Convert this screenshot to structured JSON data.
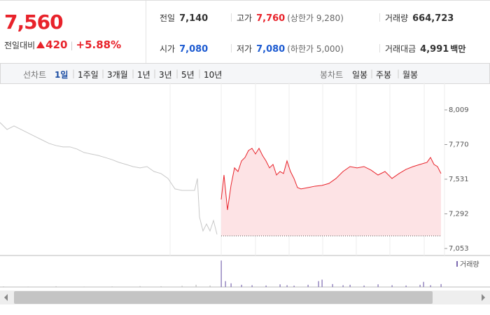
{
  "quote": {
    "price": "7,560",
    "change_label": "전일대비",
    "change": "420",
    "change_pct": "+5.88%"
  },
  "stats": [
    {
      "label": "전일",
      "value": "7,140"
    },
    {
      "label": "고가",
      "value": "7,760",
      "note": "(상한가 9,280)"
    },
    {
      "label": "거래량",
      "value": "664,723"
    },
    {
      "label": "시가",
      "value": "7,080"
    },
    {
      "label": "저가",
      "value": "7,080",
      "note": "(하한가 5,000)"
    },
    {
      "label": "거래대금",
      "value": "4,991",
      "unit": "백만"
    }
  ],
  "tabs": {
    "line_label": "선차트",
    "line_periods": [
      "1일",
      "1주일",
      "3개월",
      "1년",
      "3년",
      "5년",
      "10년"
    ],
    "candle_label": "봉차트",
    "candle_periods": [
      "일봉",
      "주봉",
      "월봉"
    ]
  },
  "chart_data": {
    "type": "line",
    "xlim": [
      0,
      635
    ],
    "ylim": [
      7053,
      8009
    ],
    "yticks": [
      {
        "value": 7053,
        "label": "7,053"
      },
      {
        "value": 7292,
        "label": "7,292"
      },
      {
        "value": 7531,
        "label": "7,531"
      },
      {
        "value": 7770,
        "label": "7,770"
      },
      {
        "value": 8009,
        "label": "8,009"
      }
    ],
    "baseline": 7140,
    "series": [
      {
        "color": "#c8c8c8",
        "x": [
          0,
          10,
          20,
          30,
          40,
          50,
          60,
          70,
          80,
          90,
          100,
          110,
          120,
          130,
          140,
          150,
          160,
          170,
          180,
          190,
          200,
          210,
          220,
          230,
          240,
          250,
          260,
          270,
          278,
          282,
          285,
          290,
          295,
          300,
          305,
          310
        ],
        "values": [
          7922,
          7874,
          7898,
          7874,
          7850,
          7826,
          7802,
          7778,
          7763,
          7754,
          7754,
          7739,
          7715,
          7705,
          7695,
          7681,
          7666,
          7647,
          7633,
          7618,
          7609,
          7618,
          7584,
          7570,
          7536,
          7464,
          7454,
          7454,
          7454,
          7536,
          7270,
          7174,
          7222,
          7174,
          7246,
          7150
        ]
      },
      {
        "color": "#e8222a",
        "fill": "#fde3e5",
        "x": [
          316,
          320,
          325,
          330,
          335,
          340,
          345,
          350,
          355,
          360,
          365,
          370,
          375,
          380,
          385,
          390,
          395,
          400,
          405,
          410,
          415,
          420,
          425,
          430,
          440,
          450,
          460,
          470,
          480,
          490,
          500,
          510,
          520,
          530,
          540,
          550,
          560,
          570,
          580,
          590,
          600,
          610,
          615,
          620,
          625,
          630
        ],
        "values": [
          7391,
          7560,
          7319,
          7488,
          7609,
          7584,
          7657,
          7681,
          7729,
          7744,
          7705,
          7744,
          7695,
          7657,
          7609,
          7633,
          7560,
          7584,
          7570,
          7657,
          7584,
          7536,
          7473,
          7464,
          7473,
          7483,
          7488,
          7502,
          7536,
          7584,
          7618,
          7609,
          7618,
          7594,
          7560,
          7584,
          7536,
          7570,
          7599,
          7618,
          7633,
          7647,
          7681,
          7633,
          7618,
          7570
        ]
      }
    ],
    "volume": {
      "name": "거래량",
      "color": "#7b68b0",
      "vlim": [
        0,
        200000
      ],
      "x": [
        5,
        40,
        80,
        120,
        160,
        200,
        230,
        260,
        280,
        300,
        316,
        322,
        330,
        345,
        360,
        380,
        400,
        410,
        420,
        440,
        455,
        460,
        475,
        490,
        500,
        520,
        540,
        560,
        580,
        600,
        605,
        615,
        630
      ],
      "values": [
        4000,
        3000,
        5000,
        3000,
        4000,
        6000,
        5000,
        8000,
        15000,
        10000,
        180000,
        40000,
        25000,
        15000,
        12000,
        10000,
        18000,
        12000,
        9000,
        15000,
        40000,
        50000,
        20000,
        12000,
        15000,
        10000,
        18000,
        12000,
        10000,
        15000,
        35000,
        12000,
        20000
      ]
    }
  }
}
